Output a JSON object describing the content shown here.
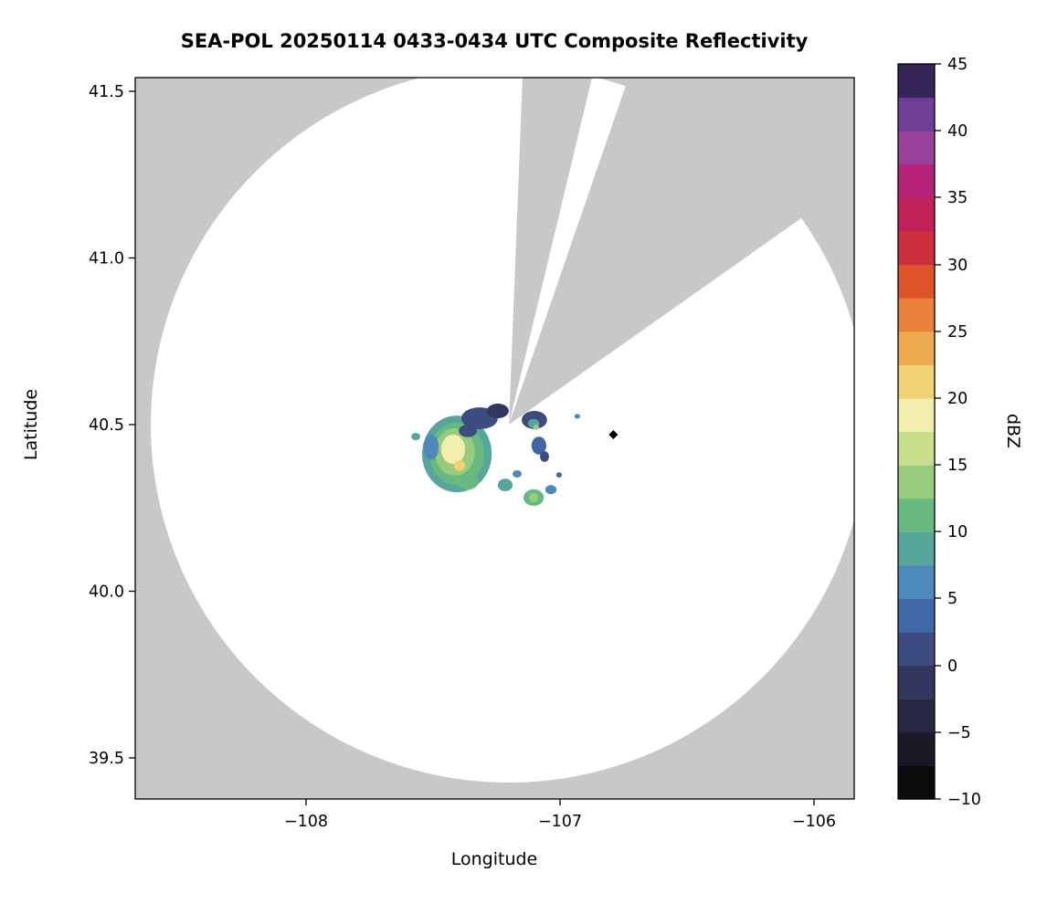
{
  "chart_data": {
    "type": "heatmap",
    "title": "SEA-POL 20250114 0433-0434 UTC Composite Reflectivity",
    "xlabel": "Longitude",
    "ylabel": "Latitude",
    "xlim": [
      -108.67,
      -105.84
    ],
    "ylim": [
      39.38,
      41.54
    ],
    "x_ticks": [
      -108,
      -107,
      -106
    ],
    "x_tick_labels": [
      "−108",
      "−107",
      "−106"
    ],
    "y_ticks": [
      39.5,
      40.0,
      40.5,
      41.0,
      41.5
    ],
    "y_tick_labels": [
      "39.5",
      "40.0",
      "40.5",
      "41.0",
      "41.5"
    ],
    "grid": false,
    "background_mask_color": "#c8c8c8",
    "coverage_fill_color": "#ffffff",
    "colorbar": {
      "label": "dBZ",
      "min": -10,
      "max": 45,
      "step": 2.5,
      "ticks": [
        -10,
        -5,
        0,
        5,
        10,
        15,
        20,
        25,
        30,
        35,
        40,
        45
      ],
      "tick_labels": [
        "−10",
        "−5",
        "0",
        "5",
        "10",
        "15",
        "20",
        "25",
        "30",
        "35",
        "40",
        "45"
      ],
      "colors_bottom_to_top": [
        "#0b0b0d",
        "#1a1926",
        "#272742",
        "#32375f",
        "#3c4b80",
        "#4168a6",
        "#4d89bb",
        "#57a69c",
        "#68b97f",
        "#97cb7d",
        "#c8de8a",
        "#f2efae",
        "#f1d275",
        "#eda94e",
        "#e8813a",
        "#e0542b",
        "#cd2f3c",
        "#c02158",
        "#b52277",
        "#98409a",
        "#6f3f97",
        "#352558"
      ]
    },
    "radar": {
      "name": "SEA-POL",
      "center_lon": -107.2,
      "center_lat": 40.5,
      "coverage_radius_deg_latitude": 1.07,
      "blocked_sector_azimuths_deg": [
        [
          2,
          13
        ],
        [
          19,
          55
        ]
      ]
    },
    "echoes": [
      {
        "lon": -107.406,
        "lat": 40.412,
        "dbz": 8,
        "rx": 0.137,
        "ry": 0.115
      },
      {
        "lon": -107.406,
        "lat": 40.412,
        "dbz": 11,
        "rx": 0.108,
        "ry": 0.093
      },
      {
        "lon": -107.414,
        "lat": 40.418,
        "dbz": 13,
        "rx": 0.079,
        "ry": 0.071
      },
      {
        "lon": -107.421,
        "lat": 40.426,
        "dbz": 18,
        "rx": 0.047,
        "ry": 0.044
      },
      {
        "lon": -107.396,
        "lat": 40.377,
        "dbz": 20,
        "rx": 0.022,
        "ry": 0.016
      },
      {
        "lon": -107.363,
        "lat": 40.33,
        "dbz": 10,
        "rx": 0.043,
        "ry": 0.025
      },
      {
        "lon": -107.507,
        "lat": 40.432,
        "dbz": 7,
        "rx": 0.029,
        "ry": 0.038
      },
      {
        "lon": -107.317,
        "lat": 40.519,
        "dbz": 0,
        "rx": 0.072,
        "ry": 0.033
      },
      {
        "lon": -107.245,
        "lat": 40.541,
        "dbz": -2,
        "rx": 0.043,
        "ry": 0.022
      },
      {
        "lon": -107.363,
        "lat": 40.481,
        "dbz": 2,
        "rx": 0.036,
        "ry": 0.019
      },
      {
        "lon": -107.101,
        "lat": 40.514,
        "dbz": 0,
        "rx": 0.05,
        "ry": 0.027
      },
      {
        "lon": -107.104,
        "lat": 40.503,
        "dbz": 8,
        "rx": 0.022,
        "ry": 0.014
      },
      {
        "lon": -107.094,
        "lat": 40.492,
        "dbz": 13,
        "rx": 0.011,
        "ry": 0.008
      },
      {
        "lon": -107.083,
        "lat": 40.437,
        "dbz": 4,
        "rx": 0.029,
        "ry": 0.027
      },
      {
        "lon": -107.061,
        "lat": 40.404,
        "dbz": 0,
        "rx": 0.018,
        "ry": 0.016
      },
      {
        "lon": -107.216,
        "lat": 40.319,
        "dbz": 8,
        "rx": 0.029,
        "ry": 0.019
      },
      {
        "lon": -107.104,
        "lat": 40.281,
        "dbz": 10,
        "rx": 0.04,
        "ry": 0.025
      },
      {
        "lon": -107.104,
        "lat": 40.281,
        "dbz": 14,
        "rx": 0.018,
        "ry": 0.014
      },
      {
        "lon": -107.036,
        "lat": 40.305,
        "dbz": 7,
        "rx": 0.022,
        "ry": 0.014
      },
      {
        "lon": -107.169,
        "lat": 40.352,
        "dbz": 6,
        "rx": 0.018,
        "ry": 0.011
      },
      {
        "lon": -107.004,
        "lat": 40.349,
        "dbz": 4,
        "rx": 0.011,
        "ry": 0.008
      },
      {
        "lon": -107.568,
        "lat": 40.464,
        "dbz": 8,
        "rx": 0.018,
        "ry": 0.011
      },
      {
        "lon": -106.932,
        "lat": 40.525,
        "dbz": 7,
        "rx": 0.011,
        "ry": 0.007
      }
    ],
    "marker": {
      "lon": -106.79,
      "lat": 40.47,
      "shape": "diamond",
      "color": "#000000"
    }
  }
}
